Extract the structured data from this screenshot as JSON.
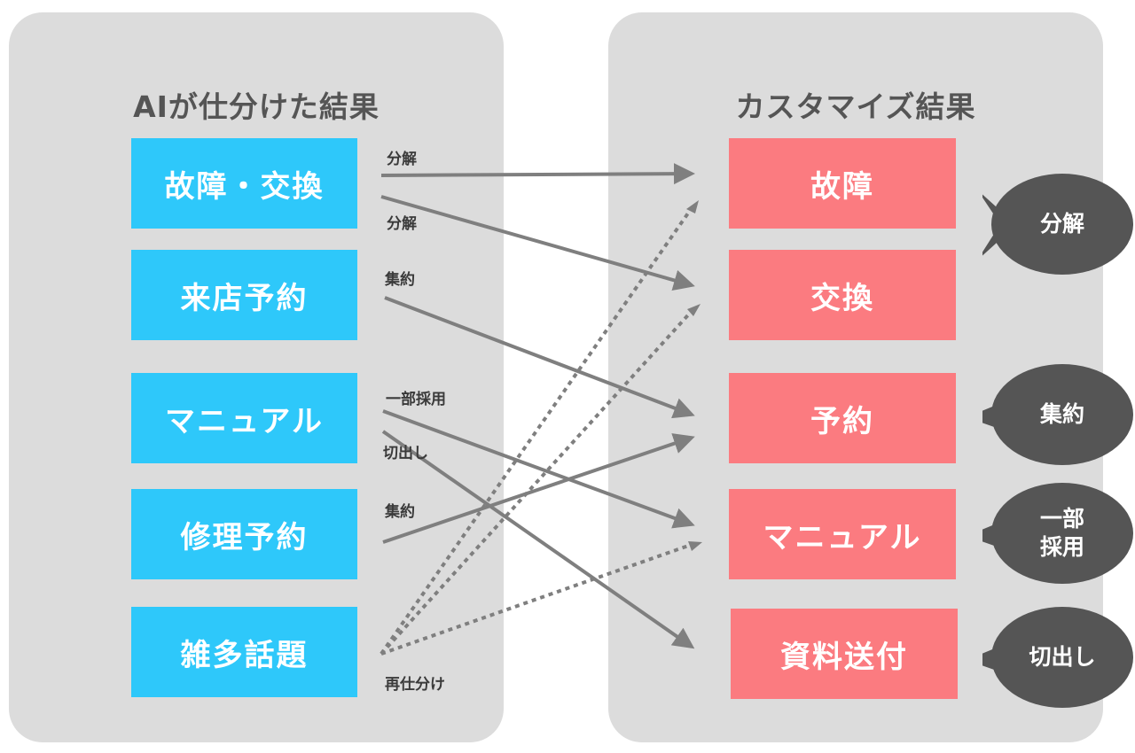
{
  "left_panel": {
    "title": "AIが仕分けた結果",
    "items": [
      "故障・交換",
      "来店予約",
      "マニュアル",
      "修理予約",
      "雑多話題"
    ]
  },
  "right_panel": {
    "title": "カスタマイズ結果",
    "items": [
      "故障",
      "交換",
      "予約",
      "マニュアル",
      "資料送付"
    ]
  },
  "edge_labels": {
    "split1": "分解",
    "split2": "分解",
    "merge1": "集約",
    "partial": "一部採用",
    "cutout": "切出し",
    "merge2": "集約",
    "resort": "再仕分け"
  },
  "bubbles": {
    "split": "分解",
    "merge": "集約",
    "partial": "一部\n採用",
    "cutout": "切出し"
  },
  "colors": {
    "panel": "#dcdcdc",
    "ai_box": "#2ec8fa",
    "custom_box": "#fb7b80",
    "arrow": "#7f7f7f",
    "bubble": "#555555"
  }
}
